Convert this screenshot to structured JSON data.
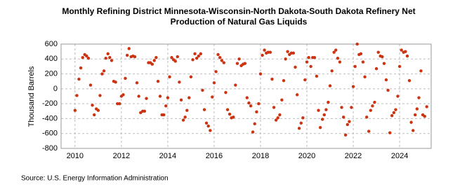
{
  "chart_data": {
    "type": "scatter",
    "title": "Monthly Refining District Minnesota-Wisconsin-North Dakota-South Dakota Refinery Net",
    "subtitle": "Production of Natural Gas Liquids",
    "y_label": "Thousand Barrels",
    "source": "Source: U.S. Energy Information Administration",
    "color": "#cc3311",
    "grid": true,
    "xlim": [
      2009.4,
      2025.36
    ],
    "ylim": [
      -800,
      600
    ],
    "xticks": [
      2010,
      2012,
      2014,
      2016,
      2018,
      2020,
      2022,
      2024
    ],
    "yticks": [
      -800,
      -600,
      -400,
      -200,
      0,
      200,
      400,
      600
    ],
    "x": [
      2010,
      2010.08,
      2010.17,
      2010.25,
      2010.33,
      2010.42,
      2010.5,
      2010.58,
      2010.67,
      2010.75,
      2010.83,
      2010.92,
      2011,
      2011.08,
      2011.17,
      2011.25,
      2011.33,
      2011.42,
      2011.5,
      2011.58,
      2011.67,
      2011.75,
      2011.83,
      2011.92,
      2012,
      2012.08,
      2012.17,
      2012.25,
      2012.33,
      2012.42,
      2012.5,
      2012.58,
      2012.67,
      2012.75,
      2012.83,
      2012.92,
      2013,
      2013.08,
      2013.17,
      2013.25,
      2013.33,
      2013.42,
      2013.5,
      2013.58,
      2013.67,
      2013.75,
      2013.83,
      2013.92,
      2014,
      2014.08,
      2014.17,
      2014.25,
      2014.33,
      2014.42,
      2014.5,
      2014.58,
      2014.67,
      2014.75,
      2014.83,
      2014.92,
      2015,
      2015.08,
      2015.17,
      2015.25,
      2015.33,
      2015.42,
      2015.5,
      2015.58,
      2015.67,
      2015.75,
      2015.83,
      2015.92,
      2016,
      2016.08,
      2016.17,
      2016.25,
      2016.33,
      2016.42,
      2016.5,
      2016.58,
      2016.67,
      2016.75,
      2016.83,
      2016.92,
      2017,
      2017.08,
      2017.17,
      2017.25,
      2017.33,
      2017.42,
      2017.5,
      2017.58,
      2017.67,
      2017.75,
      2017.83,
      2017.92,
      2018,
      2018.08,
      2018.17,
      2018.25,
      2018.33,
      2018.42,
      2018.5,
      2018.58,
      2018.67,
      2018.75,
      2018.83,
      2018.92,
      2019,
      2019.08,
      2019.17,
      2019.25,
      2019.33,
      2019.42,
      2019.5,
      2019.58,
      2019.67,
      2019.75,
      2019.83,
      2019.92,
      2020,
      2020.08,
      2020.17,
      2020.25,
      2020.33,
      2020.42,
      2020.5,
      2020.58,
      2020.67,
      2020.75,
      2020.83,
      2020.92,
      2021,
      2021.08,
      2021.17,
      2021.25,
      2021.33,
      2021.42,
      2021.5,
      2021.58,
      2021.67,
      2021.75,
      2021.83,
      2021.92,
      2022,
      2022.08,
      2022.17,
      2022.25,
      2022.33,
      2022.42,
      2022.5,
      2022.58,
      2022.67,
      2022.75,
      2022.83,
      2022.92,
      2023,
      2023.08,
      2023.17,
      2023.25,
      2023.33,
      2023.42,
      2023.5,
      2023.58,
      2023.67,
      2023.75,
      2023.83,
      2023.92,
      2024,
      2024.08,
      2024.17,
      2024.25,
      2024.33,
      2024.42,
      2024.5,
      2024.58,
      2024.67,
      2024.75,
      2024.83,
      2024.92,
      2025,
      2025.08,
      2025.17
    ],
    "values": [
      -290,
      -90,
      130,
      280,
      420,
      460,
      440,
      410,
      50,
      -220,
      -350,
      -270,
      -290,
      -90,
      200,
      240,
      410,
      470,
      420,
      380,
      100,
      90,
      -200,
      -200,
      -100,
      -80,
      140,
      450,
      540,
      430,
      440,
      430,
      80,
      -100,
      -320,
      -300,
      -300,
      -130,
      350,
      350,
      330,
      380,
      420,
      100,
      -100,
      -350,
      -350,
      -230,
      -120,
      160,
      420,
      390,
      370,
      430,
      90,
      -150,
      -420,
      -380,
      -290,
      -120,
      160,
      390,
      470,
      410,
      440,
      470,
      -20,
      -280,
      -460,
      -500,
      -560,
      -110,
      80,
      230,
      460,
      420,
      380,
      350,
      -50,
      -280,
      -340,
      -390,
      -380,
      50,
      340,
      400,
      310,
      330,
      340,
      -120,
      -190,
      -230,
      -580,
      -470,
      -310,
      -200,
      200,
      450,
      520,
      480,
      490,
      490,
      130,
      -250,
      -420,
      -390,
      -350,
      -150,
      110,
      400,
      500,
      460,
      480,
      480,
      290,
      -80,
      -530,
      -460,
      -390,
      120,
      360,
      420,
      300,
      420,
      420,
      170,
      -290,
      -520,
      -410,
      -350,
      -280,
      -180,
      40,
      240,
      490,
      520,
      410,
      360,
      -250,
      -380,
      -620,
      -480,
      -440,
      -250,
      30,
      300,
      600,
      460,
      470,
      360,
      160,
      -380,
      -570,
      -290,
      -230,
      -180,
      270,
      490,
      440,
      430,
      340,
      120,
      -20,
      -590,
      -360,
      -320,
      -280,
      -100,
      300,
      520,
      490,
      500,
      440,
      110,
      -450,
      -560,
      -350,
      -270,
      -120,
      240,
      -350,
      -370,
      -240
    ]
  }
}
